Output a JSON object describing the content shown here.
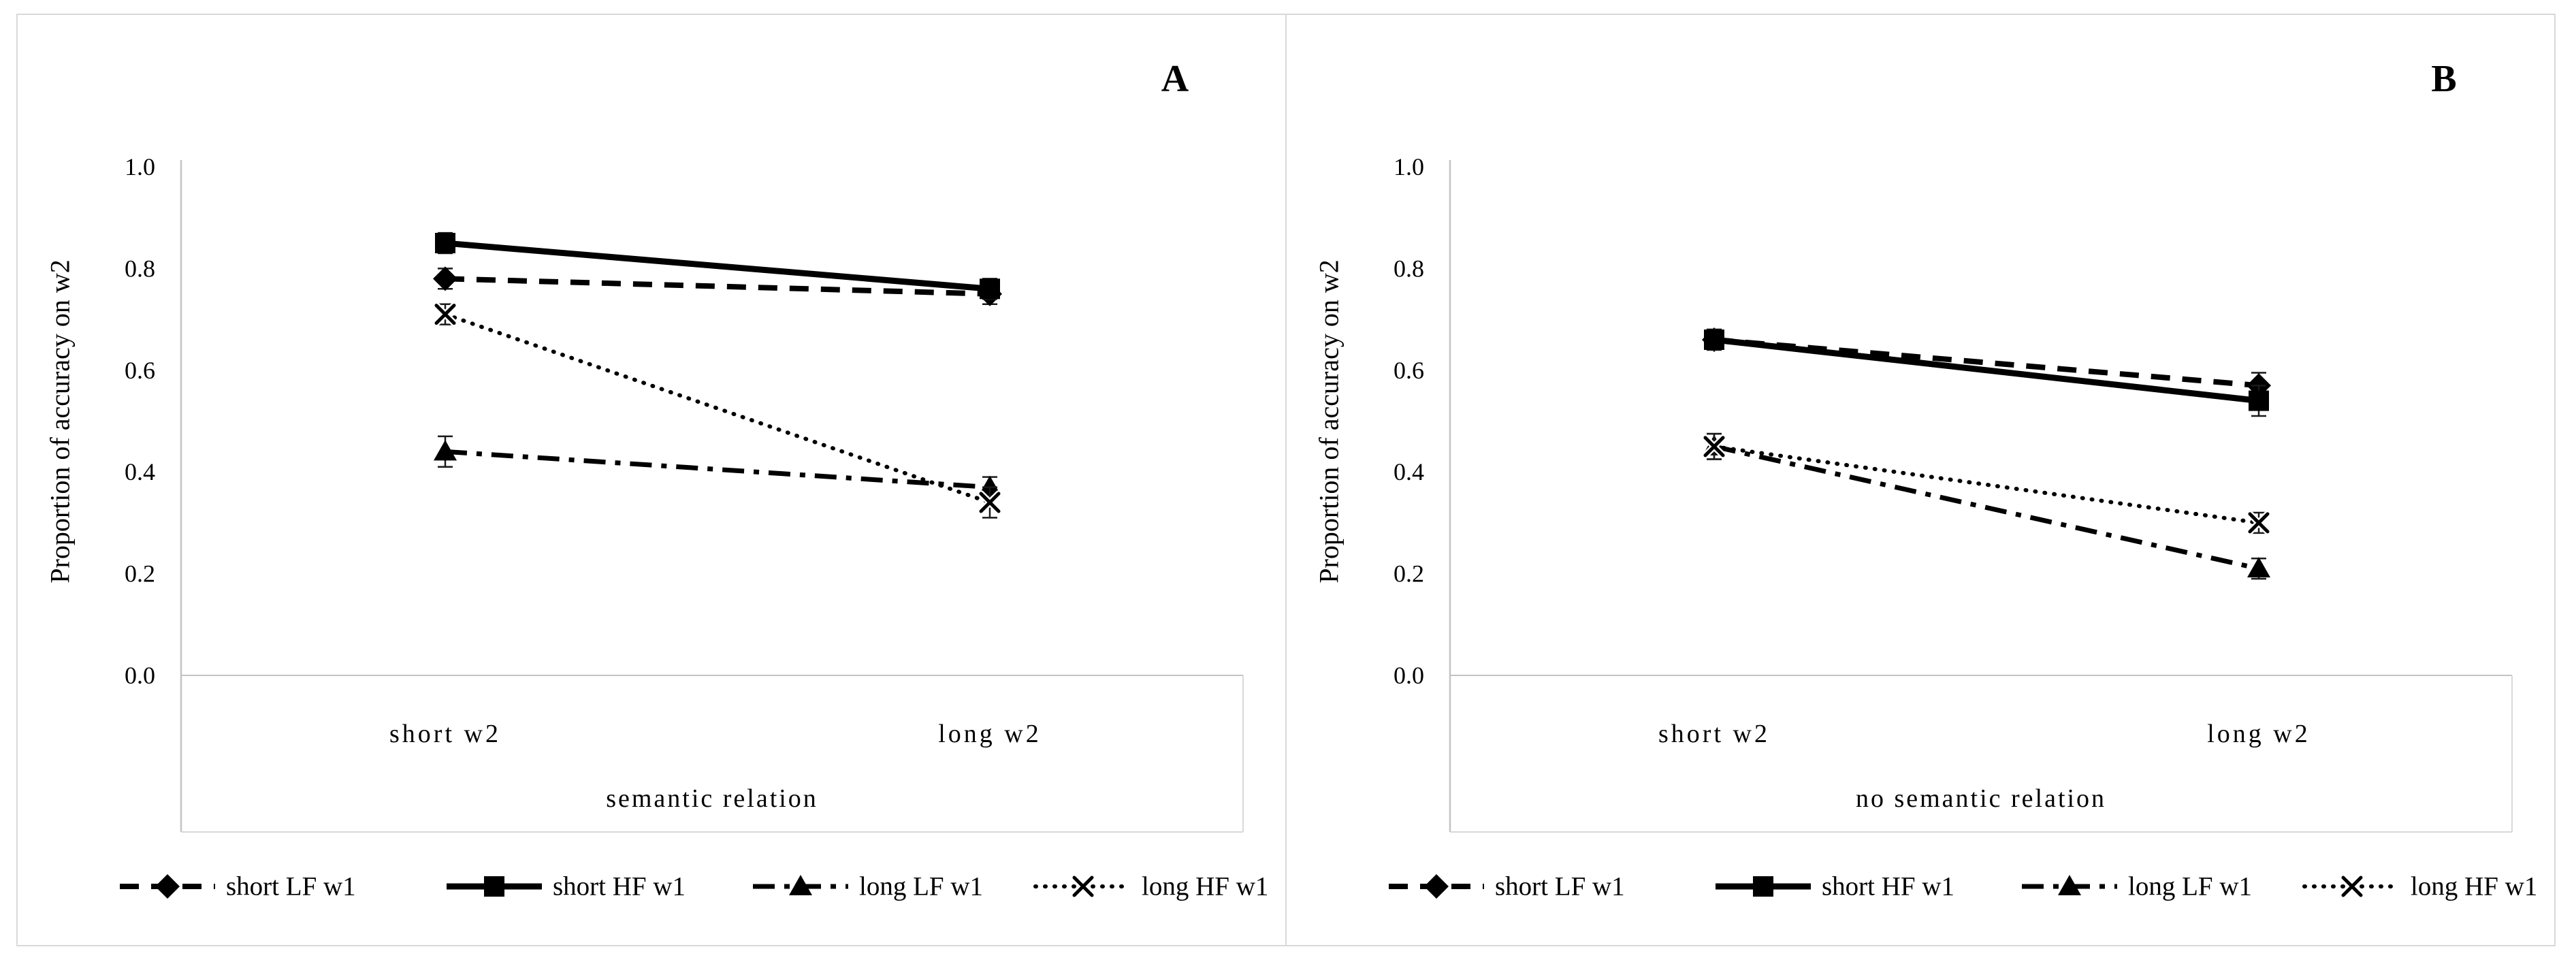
{
  "colors": {
    "series_black": "#000000",
    "axis_gray": "#c3c3c3",
    "border_gray": "#d9d9d9",
    "background": "#ffffff"
  },
  "figure": {
    "panel_labels": [
      "A",
      "B"
    ]
  },
  "chart_data": [
    {
      "type": "line",
      "panel_label": "A",
      "categories": [
        "short w2",
        "long w2"
      ],
      "xlabel": "semantic relation",
      "ylabel": "Proportion of accuracy on w2",
      "ylim": [
        0.0,
        1.0
      ],
      "yticks": [
        "1.0",
        "0.8",
        "0.6",
        "0.4",
        "0.2",
        "0.0"
      ],
      "grid": false,
      "legend_position": "bottom",
      "series": [
        {
          "name": "short LF w1",
          "marker": "diamond",
          "line": "dashed",
          "values": [
            0.78,
            0.75
          ],
          "se": [
            0.02,
            0.02
          ]
        },
        {
          "name": "short HF w1",
          "marker": "square",
          "line": "solid",
          "values": [
            0.85,
            0.76
          ],
          "se": [
            0.02,
            0.02
          ]
        },
        {
          "name": "long LF w1",
          "marker": "triangle",
          "line": "dashdot",
          "values": [
            0.44,
            0.37
          ],
          "se": [
            0.03,
            0.02
          ]
        },
        {
          "name": "long HF w1",
          "marker": "x",
          "line": "dotted",
          "values": [
            0.71,
            0.34
          ],
          "se": [
            0.02,
            0.03
          ]
        }
      ]
    },
    {
      "type": "line",
      "panel_label": "B",
      "categories": [
        "short w2",
        "long w2"
      ],
      "xlabel": "no semantic relation",
      "ylabel": "Proportion of accuracy on w2",
      "ylim": [
        0.0,
        1.0
      ],
      "yticks": [
        "1.0",
        "0.8",
        "0.6",
        "0.4",
        "0.2",
        "0.0"
      ],
      "grid": false,
      "legend_position": "bottom",
      "series": [
        {
          "name": "short LF w1",
          "marker": "diamond",
          "line": "dashed",
          "values": [
            0.66,
            0.57
          ],
          "se": [
            0.02,
            0.025
          ]
        },
        {
          "name": "short HF w1",
          "marker": "square",
          "line": "solid",
          "values": [
            0.66,
            0.54
          ],
          "se": [
            0.02,
            0.03
          ]
        },
        {
          "name": "long LF w1",
          "marker": "triangle",
          "line": "dashdot",
          "values": [
            0.45,
            0.21
          ],
          "se": [
            0.025,
            0.02
          ]
        },
        {
          "name": "long HF w1",
          "marker": "x",
          "line": "dotted",
          "values": [
            0.45,
            0.3
          ],
          "se": [
            0.025,
            0.02
          ]
        }
      ]
    }
  ]
}
